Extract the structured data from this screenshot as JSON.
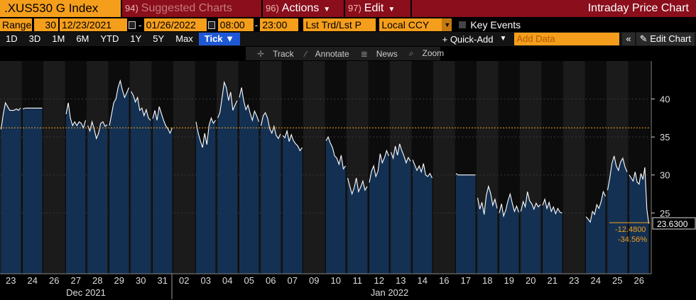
{
  "header": {
    "ticker": ".XUS530 G Index",
    "suggested": {
      "num": "94)",
      "label": "Suggested Charts"
    },
    "actions": {
      "num": "96)",
      "label": "Actions"
    },
    "edit": {
      "num": "97)",
      "label": "Edit"
    },
    "title": "Intraday Price Chart"
  },
  "controls": {
    "range_label": "Range",
    "range_value": "30",
    "start_date": "12/23/2021",
    "end_date": "01/26/2022",
    "start_time": "08:00",
    "end_time": "23:00",
    "price_field": "Lst Trd/Lst P",
    "currency": "Local CCY",
    "key_events": "Key Events"
  },
  "toolbar": {
    "periods": [
      "1D",
      "3D",
      "1M",
      "6M",
      "YTD",
      "1Y",
      "5Y",
      "Max"
    ],
    "tick": "Tick",
    "quick_add": "+ Quick-Add",
    "add_data_placeholder": "Add Data",
    "collapse": "«",
    "edit_chart": "Edit Chart"
  },
  "chart_toolbar": {
    "track": "Track",
    "annotate": "Annotate",
    "news": "News",
    "zoom": "Zoom"
  },
  "colors": {
    "accent": "#f49e1c",
    "bar": "#143356",
    "line": "#ffffff",
    "ref_line": "#f49e1c",
    "header_red": "#8a0e1b"
  },
  "chart_data": {
    "type": "area",
    "y_ticks": [
      25,
      30,
      35,
      40
    ],
    "ylim": [
      17.0,
      45.0
    ],
    "reference_line": 36.2,
    "last_value": "23.6300",
    "change_abs": "-12.4800",
    "change_pct": "-34.56%",
    "x_day_labels": [
      "23",
      "24",
      "26",
      "27",
      "28",
      "29",
      "30",
      "31",
      "02",
      "03",
      "04",
      "05",
      "06",
      "07",
      "09",
      "10",
      "11",
      "12",
      "13",
      "14",
      "16",
      "17",
      "18",
      "19",
      "20",
      "21",
      "23",
      "24",
      "25",
      "26"
    ],
    "x_month_labels": [
      "Dec 2021",
      "Jan 2022"
    ],
    "sessions": [
      {
        "day": "23",
        "values": [
          36,
          38,
          39.5,
          39,
          38.5,
          38.5,
          38.5,
          38.7,
          38.5,
          38.8
        ]
      },
      {
        "day": "24",
        "values": [
          38.7,
          38.8,
          38.8,
          38.8,
          38.8,
          38.8,
          38.8,
          38.8
        ]
      },
      {
        "day": "26",
        "values": [
          null
        ]
      },
      {
        "day": "27",
        "values": [
          38,
          39.5,
          37.5,
          36.5,
          37,
          36.5,
          37,
          36.8,
          36.2,
          37.2
        ]
      },
      {
        "day": "28",
        "values": [
          36.5,
          35.8,
          37,
          36,
          34.8,
          35.5,
          36.8,
          37,
          36.4,
          36.6
        ]
      },
      {
        "day": "29",
        "values": [
          36.5,
          38,
          39.5,
          40,
          41.5,
          42.4,
          41.2,
          40.2,
          40.8,
          41.5
        ]
      },
      {
        "day": "30",
        "values": [
          41,
          40.5,
          39.6,
          40.2,
          38.5,
          38.8,
          37.8,
          38.6,
          37.5,
          37.2
        ]
      },
      {
        "day": "31",
        "values": [
          37.4,
          38.5,
          37.2,
          39,
          38.1,
          37.2,
          36.5,
          36.1,
          35.5,
          36.2
        ]
      },
      {
        "day": "02",
        "values": [
          null
        ]
      },
      {
        "day": "03",
        "values": [
          37,
          35.5,
          34.5,
          33.6,
          35.5,
          34,
          36.5,
          37.5,
          36.8,
          37.2
        ]
      },
      {
        "day": "04",
        "values": [
          37.5,
          38.2,
          40.1,
          42.2,
          41.5,
          39.8,
          40.9,
          38.5,
          39.2,
          39.8
        ]
      },
      {
        "day": "05",
        "values": [
          40.2,
          41.5,
          39.8,
          38.6,
          39.2,
          38.1,
          37.2,
          38.4,
          37.8,
          37
        ]
      },
      {
        "day": "06",
        "values": [
          36.5,
          37.8,
          38.2,
          37.5,
          36.1,
          35.5,
          36.4,
          35.2,
          34.8,
          35.4
        ]
      },
      {
        "day": "07",
        "values": [
          35.2,
          34.9,
          35.8,
          34.4,
          35.3,
          34.5,
          34.1,
          33.8,
          33.2,
          33.6
        ]
      },
      {
        "day": "09",
        "values": [
          null
        ]
      },
      {
        "day": "10",
        "values": [
          34.5,
          35,
          34.2,
          33.6,
          32.5,
          32.2,
          31.4,
          32.6,
          30.8,
          31.2
        ]
      },
      {
        "day": "11",
        "values": [
          29.6,
          28.5,
          27.5,
          28.3,
          29.6,
          27.8,
          28.4,
          29.2,
          28,
          28.5
        ]
      },
      {
        "day": "12",
        "values": [
          29,
          30.5,
          31.2,
          29.8,
          30.5,
          32.8,
          31.6,
          32.3,
          33.2,
          32.5
        ]
      },
      {
        "day": "13",
        "values": [
          33,
          32.2,
          33.8,
          32.6,
          34.1,
          33.2,
          32.5,
          31.6,
          32.3,
          31.8
        ]
      },
      {
        "day": "14",
        "values": [
          32,
          31.3,
          30.6,
          31.2,
          30.4,
          31.5,
          30,
          29.8,
          30.2,
          29.6
        ]
      },
      {
        "day": "16",
        "values": [
          null
        ]
      },
      {
        "day": "17",
        "values": [
          30.2,
          30,
          30,
          30,
          30,
          30,
          30,
          30,
          30,
          30
        ]
      },
      {
        "day": "18",
        "values": [
          27,
          25.5,
          26.4,
          24.8,
          27.3,
          28.5,
          27.6,
          26,
          26.8,
          25.6
        ]
      },
      {
        "day": "19",
        "values": [
          25,
          26.2,
          24.6,
          25.4,
          26.6,
          27.5,
          26.3,
          25.2,
          25.9,
          25.1
        ]
      },
      {
        "day": "20",
        "values": [
          25.2,
          26.5,
          25.8,
          27.8,
          26.6,
          26.2,
          25.5,
          26.3,
          25.8,
          26.1
        ]
      },
      {
        "day": "21",
        "values": [
          26,
          26.8,
          25.6,
          26.4,
          25.2,
          25.8,
          24.9,
          25.6,
          25.1,
          25
        ]
      },
      {
        "day": "23",
        "values": [
          null
        ]
      },
      {
        "day": "24",
        "values": [
          24.5,
          24.2,
          23.8,
          25.2,
          24.8,
          26.1,
          25.6,
          26.5,
          27.8,
          27.2
        ]
      },
      {
        "day": "25",
        "values": [
          28,
          29.6,
          31.5,
          32.5,
          31.2,
          30.6,
          31.7,
          32.2,
          31.1,
          30.4
        ]
      },
      {
        "day": "26",
        "values": [
          30,
          29.6,
          29.2,
          30.4,
          29.1,
          28.8,
          30.2,
          29.4,
          31,
          25.5,
          23.6
        ]
      }
    ]
  }
}
